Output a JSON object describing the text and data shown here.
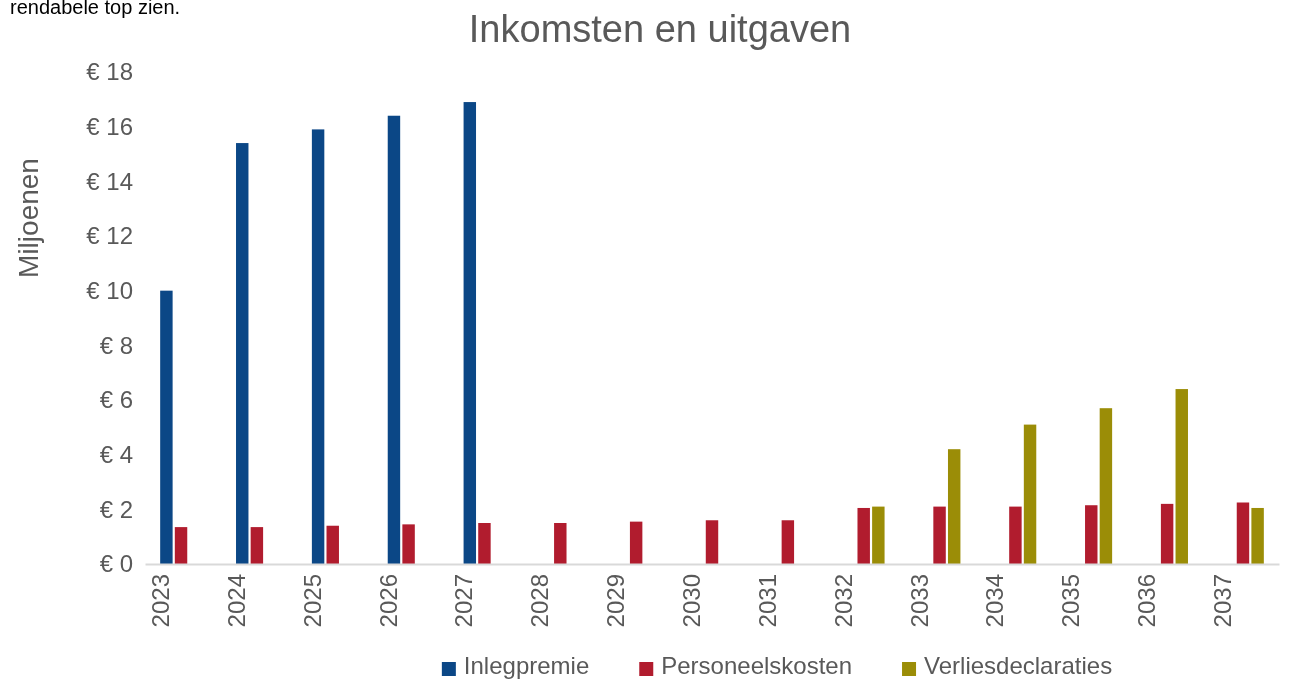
{
  "chart_data": {
    "type": "bar",
    "title": "Inkomsten en uitgaven",
    "ylabel": "Miljoenen",
    "annotations": [
      "rendabele top zien."
    ],
    "categories": [
      "2023",
      "2024",
      "2025",
      "2026",
      "2027",
      "2028",
      "2029",
      "2030",
      "2031",
      "2032",
      "2033",
      "2034",
      "2035",
      "2036",
      "2037"
    ],
    "series": [
      {
        "name": "Inlegpremie",
        "color": "#0b4786",
        "values": [
          10.0,
          15.4,
          15.9,
          16.4,
          16.9,
          null,
          null,
          null,
          null,
          null,
          null,
          null,
          null,
          null,
          null
        ]
      },
      {
        "name": "Personeelskosten",
        "color": "#b11c2e",
        "values": [
          1.35,
          1.35,
          1.4,
          1.45,
          1.5,
          1.5,
          1.55,
          1.6,
          1.6,
          2.05,
          2.1,
          2.1,
          2.15,
          2.2,
          2.25
        ]
      },
      {
        "name": "Verliesdeclaraties",
        "color": "#9b8d07",
        "values": [
          null,
          null,
          null,
          null,
          null,
          null,
          null,
          null,
          null,
          2.1,
          4.2,
          5.1,
          5.7,
          6.4,
          2.05
        ]
      }
    ],
    "ylim": [
      0,
      18
    ],
    "yticks": [
      {
        "value": 0,
        "label": "€ 0"
      },
      {
        "value": 2,
        "label": "€ 2"
      },
      {
        "value": 4,
        "label": "€ 4"
      },
      {
        "value": 6,
        "label": "€ 6"
      },
      {
        "value": 8,
        "label": "€ 8"
      },
      {
        "value": 10,
        "label": "€ 10"
      },
      {
        "value": 12,
        "label": "€ 12"
      },
      {
        "value": 14,
        "label": "€ 14"
      },
      {
        "value": 16,
        "label": "€ 16"
      },
      {
        "value": 18,
        "label": "€ 18"
      }
    ],
    "grid": false,
    "legend": "bottom"
  }
}
